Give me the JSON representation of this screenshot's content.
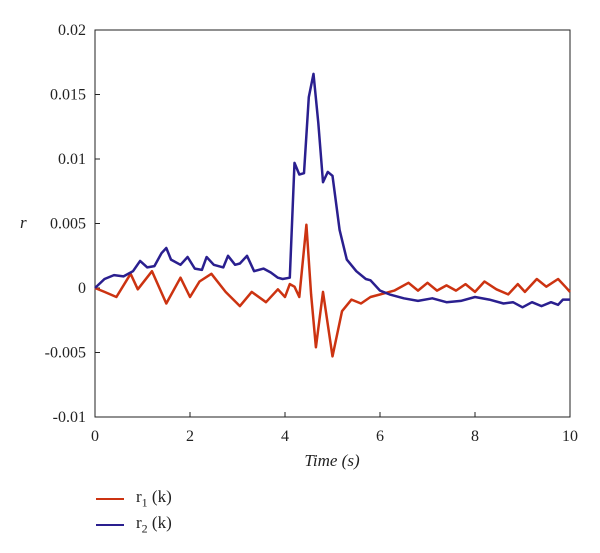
{
  "chart_data": {
    "type": "line",
    "xlabel": "Time (s)",
    "ylabel": "r",
    "xlim": [
      0,
      10
    ],
    "ylim": [
      -0.01,
      0.02
    ],
    "x_ticks": [
      0,
      2,
      4,
      6,
      8,
      10
    ],
    "y_ticks": [
      -0.01,
      -0.005,
      0,
      0.005,
      0.01,
      0.015,
      0.02
    ],
    "x_tick_labels": [
      "0",
      "2",
      "4",
      "6",
      "8",
      "10"
    ],
    "y_tick_labels": [
      "-0.01",
      "-0.005",
      "0",
      "0.005",
      "0.01",
      "0.015",
      "0.02"
    ],
    "grid": false,
    "legend_position": "below",
    "series": [
      {
        "name": "r1 (k)",
        "label_main": "r",
        "label_sub": "1",
        "label_rest": " (k)",
        "color": "#cc3311",
        "points": [
          [
            0,
            0
          ],
          [
            0.2,
            -0.0003
          ],
          [
            0.45,
            -0.0007
          ],
          [
            0.75,
            0.0011
          ],
          [
            0.9,
            -0.0001
          ],
          [
            1.2,
            0.0013
          ],
          [
            1.5,
            -0.0012
          ],
          [
            1.8,
            0.0008
          ],
          [
            2.0,
            -0.0007
          ],
          [
            2.2,
            0.0005
          ],
          [
            2.45,
            0.0011
          ],
          [
            2.75,
            -0.0003
          ],
          [
            3.05,
            -0.0014
          ],
          [
            3.3,
            -0.0003
          ],
          [
            3.6,
            -0.0011
          ],
          [
            3.85,
            -0.0001
          ],
          [
            4.0,
            -0.0007
          ],
          [
            4.1,
            0.0003
          ],
          [
            4.2,
            0.0001
          ],
          [
            4.3,
            -0.0007
          ],
          [
            4.45,
            0.0049
          ],
          [
            4.55,
            -0.0005
          ],
          [
            4.65,
            -0.0046
          ],
          [
            4.8,
            -0.0003
          ],
          [
            5.0,
            -0.0053
          ],
          [
            5.2,
            -0.0018
          ],
          [
            5.4,
            -0.0009
          ],
          [
            5.6,
            -0.0012
          ],
          [
            5.8,
            -0.0007
          ],
          [
            6.1,
            -0.0004
          ],
          [
            6.3,
            -0.0002
          ],
          [
            6.6,
            0.0004
          ],
          [
            6.8,
            -0.0002
          ],
          [
            7.0,
            0.0004
          ],
          [
            7.2,
            -0.0002
          ],
          [
            7.4,
            0.0002
          ],
          [
            7.6,
            -0.0002
          ],
          [
            7.8,
            0.0003
          ],
          [
            8.0,
            -0.0003
          ],
          [
            8.2,
            0.0005
          ],
          [
            8.45,
            -0.0001
          ],
          [
            8.7,
            -0.0005
          ],
          [
            8.9,
            0.0003
          ],
          [
            9.05,
            -0.0003
          ],
          [
            9.3,
            0.0007
          ],
          [
            9.5,
            0.0001
          ],
          [
            9.75,
            0.0007
          ],
          [
            9.9,
            0.0001
          ],
          [
            10.0,
            -0.0003
          ]
        ]
      },
      {
        "name": "r2 (k)",
        "label_main": "r",
        "label_sub": "2",
        "label_rest": " (k)",
        "color": "#2a1f8f",
        "points": [
          [
            0,
            0
          ],
          [
            0.2,
            0.0007
          ],
          [
            0.4,
            0.001
          ],
          [
            0.6,
            0.0009
          ],
          [
            0.8,
            0.0013
          ],
          [
            0.95,
            0.0021
          ],
          [
            1.1,
            0.0016
          ],
          [
            1.25,
            0.0017
          ],
          [
            1.4,
            0.0027
          ],
          [
            1.5,
            0.0031
          ],
          [
            1.6,
            0.0022
          ],
          [
            1.8,
            0.0018
          ],
          [
            1.95,
            0.0024
          ],
          [
            2.1,
            0.0015
          ],
          [
            2.25,
            0.0014
          ],
          [
            2.35,
            0.0024
          ],
          [
            2.5,
            0.0018
          ],
          [
            2.7,
            0.0016
          ],
          [
            2.8,
            0.0025
          ],
          [
            2.95,
            0.0018
          ],
          [
            3.05,
            0.0019
          ],
          [
            3.2,
            0.0025
          ],
          [
            3.35,
            0.0013
          ],
          [
            3.55,
            0.0015
          ],
          [
            3.7,
            0.0012
          ],
          [
            3.85,
            0.0008
          ],
          [
            3.95,
            0.0007
          ],
          [
            4.1,
            0.0008
          ],
          [
            4.2,
            0.0097
          ],
          [
            4.3,
            0.0088
          ],
          [
            4.4,
            0.0089
          ],
          [
            4.5,
            0.0148
          ],
          [
            4.6,
            0.0166
          ],
          [
            4.7,
            0.0128
          ],
          [
            4.8,
            0.0082
          ],
          [
            4.9,
            0.009
          ],
          [
            5.0,
            0.0087
          ],
          [
            5.15,
            0.0045
          ],
          [
            5.3,
            0.0022
          ],
          [
            5.5,
            0.0013
          ],
          [
            5.7,
            0.0007
          ],
          [
            5.8,
            0.0006
          ],
          [
            6.0,
            -0.0002
          ],
          [
            6.2,
            -0.0005
          ],
          [
            6.5,
            -0.0008
          ],
          [
            6.8,
            -0.001
          ],
          [
            7.1,
            -0.0008
          ],
          [
            7.4,
            -0.0011
          ],
          [
            7.7,
            -0.001
          ],
          [
            8.0,
            -0.0007
          ],
          [
            8.3,
            -0.0009
          ],
          [
            8.6,
            -0.0012
          ],
          [
            8.8,
            -0.0011
          ],
          [
            9.0,
            -0.0015
          ],
          [
            9.2,
            -0.0011
          ],
          [
            9.4,
            -0.0014
          ],
          [
            9.6,
            -0.0011
          ],
          [
            9.75,
            -0.0013
          ],
          [
            9.85,
            -0.0009
          ],
          [
            10.0,
            -0.0009
          ]
        ]
      }
    ]
  }
}
